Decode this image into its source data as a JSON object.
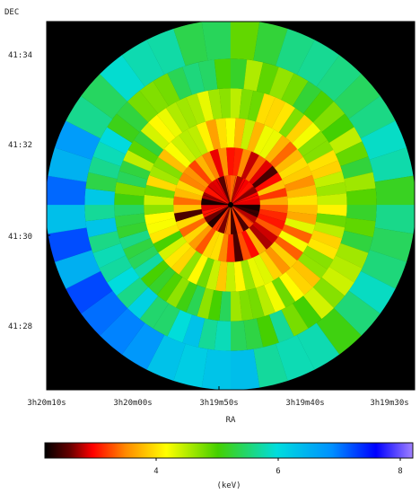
{
  "chart_data": {
    "type": "heatmap",
    "description_text": "",
    "ylabel": "DEC",
    "xlabel": "RA",
    "x_ticks": [
      "3h20m10s",
      "3h20m00s",
      "3h19m50s",
      "3h19m40s",
      "3h19m30s"
    ],
    "y_ticks": [
      "41:34",
      "41:32",
      "41:30",
      "41:28"
    ],
    "colorbar": {
      "label": "(keV)",
      "ticks": [
        "4",
        "6",
        "8"
      ],
      "tick_values": [
        4,
        6,
        8
      ],
      "range": [
        2.3,
        8.4
      ]
    },
    "map": {
      "background_color": "#000000",
      "grid": false,
      "rings": [
        {
          "inner_fraction": 0.0,
          "outer_fraction": 0.16,
          "segments": 28,
          "typical_keV": 3.0
        },
        {
          "inner_fraction": 0.16,
          "outer_fraction": 0.31,
          "segments": 42,
          "typical_keV": 3.4
        },
        {
          "inner_fraction": 0.31,
          "outer_fraction": 0.47,
          "segments": 54,
          "typical_keV": 4.0
        },
        {
          "inner_fraction": 0.47,
          "outer_fraction": 0.63,
          "segments": 64,
          "typical_keV": 4.5
        },
        {
          "inner_fraction": 0.63,
          "outer_fraction": 0.79,
          "segments": 56,
          "typical_keV": 5.0
        },
        {
          "inner_fraction": 0.79,
          "outer_fraction": 1.0,
          "segments": 40,
          "typical_keV": 5.5
        }
      ]
    }
  }
}
